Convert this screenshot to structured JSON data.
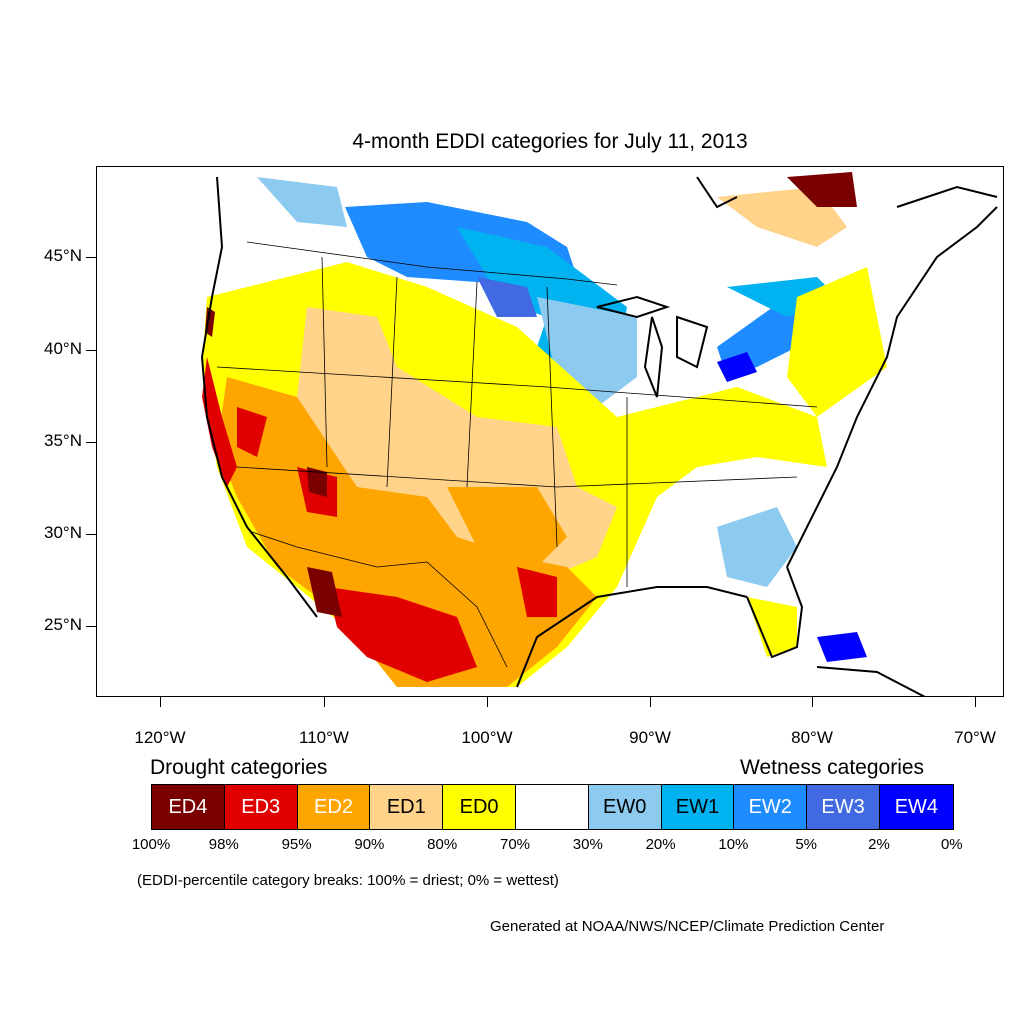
{
  "title": "4-month EDDI categories for July 11, 2013",
  "y_axis": {
    "ticks": [
      {
        "label": "45°N",
        "value": 45
      },
      {
        "label": "40°N",
        "value": 40
      },
      {
        "label": "35°N",
        "value": 35
      },
      {
        "label": "30°N",
        "value": 30
      },
      {
        "label": "25°N",
        "value": 25
      }
    ]
  },
  "x_axis": {
    "ticks": [
      {
        "label": "120°W",
        "value": -120
      },
      {
        "label": "110°W",
        "value": -110
      },
      {
        "label": "100°W",
        "value": -100
      },
      {
        "label": "90°W",
        "value": -90
      },
      {
        "label": "80°W",
        "value": -80
      },
      {
        "label": "70°W",
        "value": -70
      }
    ]
  },
  "legend": {
    "drought_title": "Drought categories",
    "wetness_title": "Wetness categories",
    "categories": [
      {
        "label": "ED4",
        "color": "#7a0000",
        "text_color": "#ffffff"
      },
      {
        "label": "ED3",
        "color": "#e00000",
        "text_color": "#ffffff"
      },
      {
        "label": "ED2",
        "color": "#ffa500",
        "text_color": "#ffffff"
      },
      {
        "label": "ED1",
        "color": "#ffd38a",
        "text_color": "#000000"
      },
      {
        "label": "ED0",
        "color": "#ffff00",
        "text_color": "#000000"
      },
      {
        "label": "",
        "color": "#ffffff",
        "text_color": "#000000"
      },
      {
        "label": "EW0",
        "color": "#8ccaf0",
        "text_color": "#000000"
      },
      {
        "label": "EW1",
        "color": "#00b2f0",
        "text_color": "#000000"
      },
      {
        "label": "EW2",
        "color": "#1e8cff",
        "text_color": "#ffffff"
      },
      {
        "label": "EW3",
        "color": "#4169e1",
        "text_color": "#ffffff"
      },
      {
        "label": "EW4",
        "color": "#0000ff",
        "text_color": "#ffffff"
      }
    ],
    "breaks": [
      "100%",
      "98%",
      "95%",
      "90%",
      "80%",
      "70%",
      "30%",
      "20%",
      "10%",
      "5%",
      "2%",
      "0%"
    ],
    "note": "(EDDI-percentile category breaks: 100% = driest; 0% = wettest)"
  },
  "credit": "Generated at NOAA/NWS/NCEP/Climate Prediction Center"
}
